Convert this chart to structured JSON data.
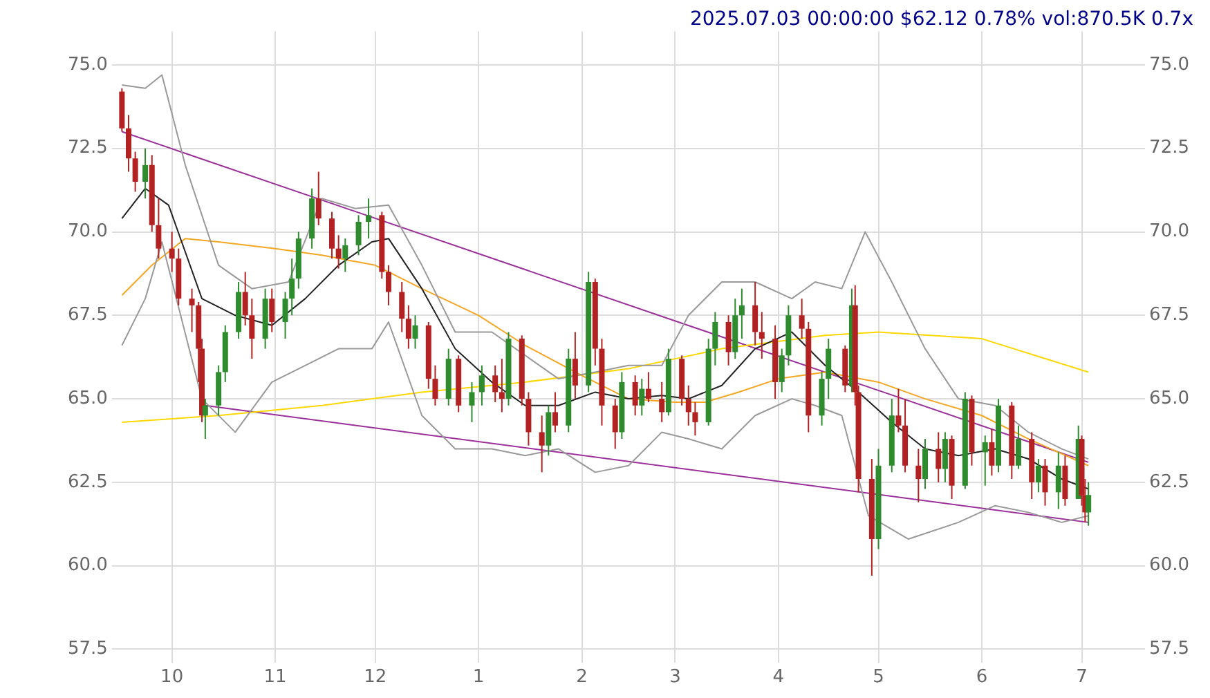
{
  "chart_data": {
    "type": "candlestick",
    "title": "2025.07.03 00:00:00 $62.12 0.78% vol:870.5K 0.7x",
    "grid": true,
    "xlim": [
      "2024-09-13",
      "2025-07-20"
    ],
    "xticks": [
      {
        "value": "2024-10-01",
        "label": "10"
      },
      {
        "value": "2024-11-01",
        "label": "11"
      },
      {
        "value": "2024-12-01",
        "label": "12"
      },
      {
        "value": "2025-01-01",
        "label": "1"
      },
      {
        "value": "2025-02-01",
        "label": "2"
      },
      {
        "value": "2025-03-01",
        "label": "3"
      },
      {
        "value": "2025-04-01",
        "label": "4"
      },
      {
        "value": "2025-05-01",
        "label": "5"
      },
      {
        "value": "2025-06-01",
        "label": "6"
      },
      {
        "value": "2025-07-01",
        "label": "7"
      }
    ],
    "ylim": [
      57.1,
      76.0
    ],
    "yticks": [
      {
        "value": 57.5,
        "label": "57.5"
      },
      {
        "value": 60,
        "label": "60.0"
      },
      {
        "value": 62.5,
        "label": "62.5"
      },
      {
        "value": 65,
        "label": "65.0"
      },
      {
        "value": 67.5,
        "label": "67.5"
      },
      {
        "value": 70,
        "label": "70.0"
      },
      {
        "value": 72.5,
        "label": "72.5"
      },
      {
        "value": 75,
        "label": "75.0"
      }
    ],
    "y2lim": [
      57.1,
      76.0
    ],
    "y2ticks": [
      {
        "value": 57.5,
        "label": "57.5"
      },
      {
        "value": 60,
        "label": "60.0"
      },
      {
        "value": 62.5,
        "label": "62.5"
      },
      {
        "value": 65,
        "label": "65.0"
      },
      {
        "value": 67.5,
        "label": "67.5"
      },
      {
        "value": 70,
        "label": "70.0"
      },
      {
        "value": 72.5,
        "label": "72.5"
      },
      {
        "value": 75,
        "label": "75.0"
      }
    ],
    "x": [
      "2024-09-16",
      "2024-09-18",
      "2024-09-20",
      "2024-09-23",
      "2024-09-25",
      "2024-09-27",
      "2024-10-01",
      "2024-10-03",
      "2024-10-07",
      "2024-10-09",
      "2024-10-10",
      "2024-10-11",
      "2024-10-15",
      "2024-10-17",
      "2024-10-21",
      "2024-10-23",
      "2024-10-25",
      "2024-10-29",
      "2024-10-31",
      "2024-11-04",
      "2024-11-06",
      "2024-11-08",
      "2024-11-12",
      "2024-11-14",
      "2024-11-18",
      "2024-11-20",
      "2024-11-22",
      "2024-11-26",
      "2024-11-29",
      "2024-12-03",
      "2024-12-05",
      "2024-12-09",
      "2024-12-11",
      "2024-12-13",
      "2024-12-17",
      "2024-12-19",
      "2024-12-23",
      "2024-12-26",
      "2024-12-30",
      "2025-01-02",
      "2025-01-06",
      "2025-01-08",
      "2025-01-10",
      "2025-01-14",
      "2025-01-16",
      "2025-01-20",
      "2025-01-22",
      "2025-01-24",
      "2025-01-28",
      "2025-01-30",
      "2025-02-03",
      "2025-02-05",
      "2025-02-07",
      "2025-02-11",
      "2025-02-13",
      "2025-02-17",
      "2025-02-19",
      "2025-02-21",
      "2025-02-25",
      "2025-02-27",
      "2025-03-03",
      "2025-03-05",
      "2025-03-07",
      "2025-03-11",
      "2025-03-13",
      "2025-03-17",
      "2025-03-19",
      "2025-03-21",
      "2025-03-25",
      "2025-03-27",
      "2025-03-31",
      "2025-04-02",
      "2025-04-04",
      "2025-04-08",
      "2025-04-10",
      "2025-04-14",
      "2025-04-16",
      "2025-04-21",
      "2025-04-23",
      "2025-04-24",
      "2025-04-25",
      "2025-04-29",
      "2025-05-01",
      "2025-05-05",
      "2025-05-07",
      "2025-05-09",
      "2025-05-13",
      "2025-05-15",
      "2025-05-19",
      "2025-05-21",
      "2025-05-23",
      "2025-05-27",
      "2025-05-29",
      "2025-06-02",
      "2025-06-04",
      "2025-06-06",
      "2025-06-10",
      "2025-06-12",
      "2025-06-16",
      "2025-06-18",
      "2025-06-20",
      "2025-06-24",
      "2025-06-26",
      "2025-06-30",
      "2025-07-01",
      "2025-07-02",
      "2025-07-03"
    ],
    "ohlc": [
      [
        74.2,
        74.3,
        73.0,
        73.1
      ],
      [
        73.1,
        73.5,
        71.8,
        72.2
      ],
      [
        72.2,
        72.4,
        71.2,
        71.5
      ],
      [
        71.5,
        72.5,
        71.0,
        72.0
      ],
      [
        72.0,
        72.3,
        70.0,
        70.2
      ],
      [
        70.2,
        71.0,
        69.2,
        69.5
      ],
      [
        69.5,
        70.0,
        68.8,
        69.2
      ],
      [
        69.2,
        69.5,
        67.8,
        68.0
      ],
      [
        68.0,
        68.3,
        67.0,
        67.8
      ],
      [
        67.8,
        67.9,
        65.5,
        66.5
      ],
      [
        66.5,
        66.8,
        64.3,
        64.5
      ],
      [
        64.5,
        65.0,
        63.8,
        64.8
      ],
      [
        64.8,
        66.0,
        64.5,
        65.8
      ],
      [
        65.8,
        67.2,
        65.5,
        67.0
      ],
      [
        67.0,
        68.5,
        66.8,
        68.2
      ],
      [
        68.2,
        68.8,
        67.2,
        67.5
      ],
      [
        67.5,
        68.0,
        66.2,
        66.8
      ],
      [
        66.8,
        68.3,
        66.5,
        68.0
      ],
      [
        68.0,
        68.3,
        67.0,
        67.3
      ],
      [
        67.3,
        68.2,
        66.8,
        68.0
      ],
      [
        68.0,
        69.2,
        67.5,
        68.6
      ],
      [
        68.6,
        70.0,
        68.3,
        69.8
      ],
      [
        69.8,
        71.3,
        69.5,
        71.0
      ],
      [
        71.0,
        71.8,
        70.2,
        70.4
      ],
      [
        70.4,
        70.6,
        69.2,
        69.5
      ],
      [
        69.5,
        69.9,
        68.9,
        69.2
      ],
      [
        69.2,
        69.8,
        68.8,
        69.6
      ],
      [
        69.6,
        70.5,
        69.3,
        70.3
      ],
      [
        70.3,
        71.0,
        69.8,
        70.5
      ],
      [
        70.5,
        70.6,
        68.6,
        68.8
      ],
      [
        68.8,
        69.0,
        67.8,
        68.2
      ],
      [
        68.2,
        68.5,
        67.0,
        67.4
      ],
      [
        67.4,
        67.8,
        66.5,
        66.8
      ],
      [
        66.8,
        67.5,
        66.5,
        67.2
      ],
      [
        67.2,
        67.3,
        65.3,
        65.6
      ],
      [
        65.6,
        66.0,
        64.8,
        65.0
      ],
      [
        65.0,
        66.5,
        64.8,
        66.2
      ],
      [
        66.2,
        66.3,
        64.6,
        64.8
      ],
      [
        64.8,
        65.5,
        64.3,
        65.2
      ],
      [
        65.2,
        66.0,
        64.8,
        65.7
      ],
      [
        65.7,
        66.0,
        64.9,
        65.2
      ],
      [
        65.2,
        66.2,
        64.6,
        65.0
      ],
      [
        65.0,
        67.0,
        64.8,
        66.8
      ],
      [
        66.8,
        66.9,
        64.8,
        65.0
      ],
      [
        65.0,
        65.2,
        63.6,
        64.0
      ],
      [
        64.0,
        64.5,
        62.8,
        63.6
      ],
      [
        63.6,
        64.8,
        63.3,
        64.6
      ],
      [
        64.6,
        65.2,
        64.0,
        64.2
      ],
      [
        64.2,
        66.5,
        64.0,
        66.2
      ],
      [
        66.2,
        67.0,
        65.0,
        65.4
      ],
      [
        65.4,
        68.8,
        65.2,
        68.5
      ],
      [
        68.5,
        68.6,
        66.0,
        66.5
      ],
      [
        66.5,
        66.8,
        64.2,
        64.8
      ],
      [
        64.8,
        65.0,
        63.5,
        64.0
      ],
      [
        64.0,
        65.8,
        63.8,
        65.5
      ],
      [
        65.5,
        65.7,
        64.5,
        64.8
      ],
      [
        64.8,
        65.6,
        64.5,
        65.3
      ],
      [
        65.3,
        65.8,
        64.9,
        65.0
      ],
      [
        65.0,
        65.5,
        64.3,
        64.6
      ],
      [
        64.6,
        66.5,
        64.5,
        66.2
      ],
      [
        66.2,
        66.3,
        64.8,
        65.0
      ],
      [
        65.0,
        65.4,
        64.2,
        64.6
      ],
      [
        64.6,
        64.9,
        63.9,
        64.3
      ],
      [
        64.3,
        66.8,
        64.2,
        66.5
      ],
      [
        66.5,
        67.6,
        66.0,
        67.3
      ],
      [
        67.3,
        67.5,
        66.0,
        66.4
      ],
      [
        66.4,
        68.0,
        66.2,
        67.5
      ],
      [
        67.5,
        68.3,
        66.8,
        67.8
      ],
      [
        67.8,
        68.5,
        66.6,
        67.0
      ],
      [
        67.0,
        67.6,
        66.2,
        66.8
      ],
      [
        66.8,
        67.2,
        65.0,
        65.5
      ],
      [
        65.5,
        66.5,
        65.2,
        66.3
      ],
      [
        66.3,
        67.8,
        66.0,
        67.5
      ],
      [
        67.5,
        68.0,
        66.8,
        67.1
      ],
      [
        67.1,
        67.3,
        64.0,
        64.5
      ],
      [
        64.5,
        65.8,
        64.2,
        65.6
      ],
      [
        65.6,
        66.8,
        65.0,
        66.5
      ],
      [
        66.5,
        66.6,
        65.2,
        65.4
      ],
      [
        65.4,
        68.3,
        65.2,
        67.8
      ],
      [
        67.8,
        68.4,
        64.8,
        65.2
      ],
      [
        65.2,
        65.4,
        62.2,
        62.6
      ],
      [
        62.6,
        63.2,
        59.7,
        60.8
      ],
      [
        60.8,
        63.5,
        60.5,
        63.0
      ],
      [
        63.0,
        65.0,
        62.8,
        64.5
      ],
      [
        64.5,
        65.3,
        64.0,
        64.2
      ],
      [
        64.2,
        65.0,
        62.8,
        63.0
      ],
      [
        63.0,
        63.5,
        61.9,
        62.6
      ],
      [
        62.6,
        63.8,
        62.3,
        63.5
      ],
      [
        63.5,
        64.0,
        62.5,
        62.9
      ],
      [
        62.9,
        64.0,
        62.5,
        63.8
      ],
      [
        63.8,
        63.9,
        62.0,
        62.4
      ],
      [
        62.4,
        65.2,
        62.3,
        65.0
      ],
      [
        65.0,
        65.1,
        63.0,
        63.4
      ],
      [
        63.4,
        63.9,
        62.4,
        63.7
      ],
      [
        63.7,
        64.1,
        62.7,
        63.0
      ],
      [
        63.0,
        65.0,
        62.8,
        64.8
      ],
      [
        64.8,
        64.9,
        62.6,
        63.0
      ],
      [
        63.0,
        64.2,
        62.9,
        63.8
      ],
      [
        63.8,
        64.0,
        62.0,
        62.5
      ],
      [
        62.5,
        63.2,
        62.2,
        63.0
      ],
      [
        63.0,
        63.2,
        61.8,
        62.2
      ],
      [
        62.2,
        63.4,
        61.7,
        63.0
      ],
      [
        63.0,
        63.3,
        61.8,
        62.0
      ],
      [
        62.0,
        64.2,
        62.0,
        63.8
      ],
      [
        63.8,
        63.9,
        61.8,
        62.1
      ],
      [
        62.1,
        62.6,
        61.3,
        61.6
      ],
      [
        61.6,
        62.5,
        61.2,
        62.12
      ]
    ],
    "series": [
      {
        "type": "line",
        "color": "#222222",
        "x": [
          "2024-09-16",
          "2024-09-23",
          "2024-09-30",
          "2024-10-10",
          "2024-10-20",
          "2024-10-31",
          "2024-11-10",
          "2024-11-20",
          "2024-11-30",
          "2024-12-05",
          "2024-12-15",
          "2024-12-25",
          "2025-01-05",
          "2025-01-15",
          "2025-01-25",
          "2025-02-05",
          "2025-02-15",
          "2025-02-25",
          "2025-03-05",
          "2025-03-15",
          "2025-03-25",
          "2025-04-05",
          "2025-04-15",
          "2025-04-25",
          "2025-05-05",
          "2025-05-15",
          "2025-05-25",
          "2025-06-05",
          "2025-06-15",
          "2025-06-25",
          "2025-07-03"
        ],
        "values": [
          70.4,
          71.3,
          70.8,
          68.0,
          67.5,
          67.2,
          68.0,
          69.0,
          69.7,
          69.8,
          68.3,
          66.5,
          65.5,
          64.8,
          64.8,
          65.2,
          65.0,
          65.1,
          65.0,
          65.4,
          66.5,
          67.0,
          66.0,
          65.2,
          64.3,
          63.5,
          63.3,
          63.5,
          63.2,
          62.6,
          62.3
        ]
      },
      {
        "type": "line",
        "color": "#999999",
        "x": [
          "2024-09-16",
          "2024-09-23",
          "2024-09-28",
          "2024-10-05",
          "2024-10-15",
          "2024-10-25",
          "2024-11-05",
          "2024-11-15",
          "2024-11-25",
          "2024-12-05",
          "2024-12-15",
          "2024-12-25",
          "2025-01-05",
          "2025-01-15",
          "2025-01-25",
          "2025-02-05",
          "2025-02-15",
          "2025-02-25",
          "2025-03-05",
          "2025-03-15",
          "2025-03-25",
          "2025-04-05",
          "2025-04-12",
          "2025-04-20",
          "2025-04-27",
          "2025-05-05",
          "2025-05-15",
          "2025-05-25",
          "2025-06-05",
          "2025-06-15",
          "2025-06-25",
          "2025-07-03"
        ],
        "values": [
          74.4,
          74.3,
          74.7,
          72.0,
          69.0,
          68.3,
          68.5,
          71.0,
          70.7,
          70.8,
          69.0,
          67.0,
          67.0,
          66.3,
          65.6,
          65.8,
          66.0,
          66.0,
          67.5,
          68.5,
          68.5,
          68.0,
          68.5,
          68.3,
          70.0,
          68.5,
          66.5,
          65.0,
          64.8,
          64.0,
          63.5,
          63.2
        ]
      },
      {
        "type": "line",
        "color": "#999999",
        "x": [
          "2024-09-16",
          "2024-09-23",
          "2024-09-28",
          "2024-10-10",
          "2024-10-20",
          "2024-10-31",
          "2024-11-10",
          "2024-11-20",
          "2024-11-30",
          "2024-12-05",
          "2024-12-15",
          "2024-12-25",
          "2025-01-05",
          "2025-01-15",
          "2025-01-25",
          "2025-02-05",
          "2025-02-15",
          "2025-02-25",
          "2025-03-05",
          "2025-03-15",
          "2025-03-25",
          "2025-04-05",
          "2025-04-12",
          "2025-04-20",
          "2025-04-28",
          "2025-05-10",
          "2025-05-25",
          "2025-06-05",
          "2025-06-15",
          "2025-06-25",
          "2025-07-03"
        ],
        "values": [
          66.6,
          68.0,
          69.7,
          65.0,
          64.0,
          65.5,
          66.0,
          66.5,
          66.5,
          67.3,
          64.5,
          63.5,
          63.5,
          63.3,
          63.5,
          62.8,
          63.0,
          64.0,
          63.8,
          63.5,
          64.5,
          65.0,
          64.8,
          64.5,
          61.5,
          60.8,
          61.3,
          61.8,
          61.6,
          61.3,
          61.5
        ]
      },
      {
        "type": "line",
        "color": "#f5a623",
        "x": [
          "2024-09-16",
          "2024-09-25",
          "2024-10-05",
          "2024-10-15",
          "2024-11-01",
          "2024-11-15",
          "2024-12-01",
          "2024-12-15",
          "2025-01-01",
          "2025-01-15",
          "2025-02-01",
          "2025-02-15",
          "2025-03-01",
          "2025-03-10",
          "2025-03-20",
          "2025-04-01",
          "2025-04-15",
          "2025-05-01",
          "2025-05-15",
          "2025-06-01",
          "2025-06-15",
          "2025-07-03"
        ],
        "values": [
          68.1,
          69.0,
          69.8,
          69.7,
          69.5,
          69.3,
          69.0,
          68.3,
          67.5,
          66.6,
          65.7,
          65.0,
          64.9,
          64.9,
          65.2,
          65.6,
          65.8,
          65.5,
          65.0,
          64.5,
          63.8,
          63.0
        ]
      },
      {
        "type": "line",
        "color": "#ffd700",
        "x": [
          "2024-09-16",
          "2024-10-15",
          "2024-11-15",
          "2024-12-15",
          "2025-01-15",
          "2025-02-15",
          "2025-03-15",
          "2025-04-15",
          "2025-05-01",
          "2025-06-01",
          "2025-07-03"
        ],
        "values": [
          64.3,
          64.5,
          64.8,
          65.2,
          65.5,
          65.9,
          66.5,
          66.9,
          67.0,
          66.8,
          65.8
        ]
      },
      {
        "type": "line",
        "color": "#9b309b",
        "x": [
          "2024-09-16",
          "2025-07-03"
        ],
        "values": [
          73.0,
          63.1
        ]
      },
      {
        "type": "line",
        "color": "#9b309b",
        "x": [
          "2024-10-11",
          "2025-07-03"
        ],
        "values": [
          64.8,
          61.3
        ]
      }
    ]
  }
}
